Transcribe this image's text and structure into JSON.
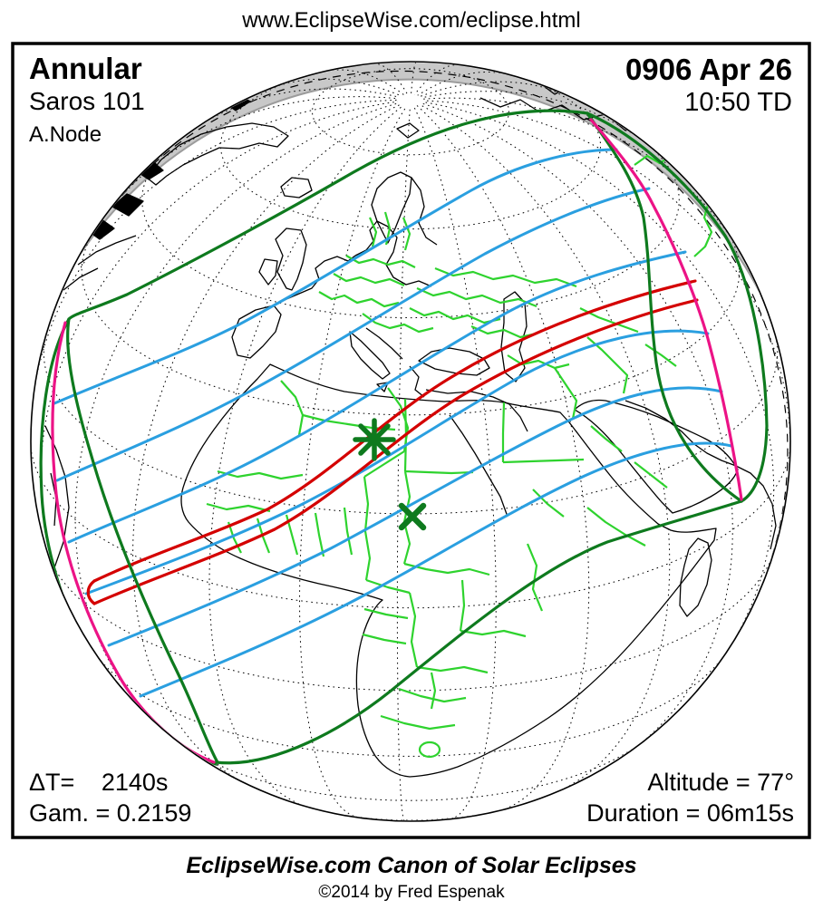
{
  "header": {
    "url": "www.EclipseWise.com/eclipse.html"
  },
  "map_labels": {
    "type": "Annular",
    "saros": "Saros 101",
    "node": "A.Node",
    "date": "0906 Apr 26",
    "time": "10:50 TD",
    "delta_t_label": "ΔT=",
    "delta_t_value": "2140s",
    "gamma": "Gam. = 0.2159",
    "altitude": "Altitude = 77°",
    "duration": "Duration = 06m15s"
  },
  "footer": {
    "title": "EclipseWise.com Canon of Solar Eclipses",
    "copyright": "©2014 by Fred Espenak"
  },
  "markers": {
    "greatest_eclipse": "star-marker",
    "greatest_duration": "x-marker"
  },
  "colors": {
    "background": "#ffffff",
    "text": "#000000",
    "frame": "#000000",
    "globe_outline": "#000000",
    "graticule": "#000000",
    "coastline": "#000000",
    "country_border": "#2ed32e",
    "penumbra_limit": "#0e7a1e",
    "sunrise_sunset_curve": "#ec1386",
    "magnitude_contour": "#2a9fe0",
    "annular_path": "#d40000",
    "limb_shading": "#c8c8c8",
    "limb_shading_edge": "#9b9b9b",
    "marker_green": "#0e7a1e"
  }
}
